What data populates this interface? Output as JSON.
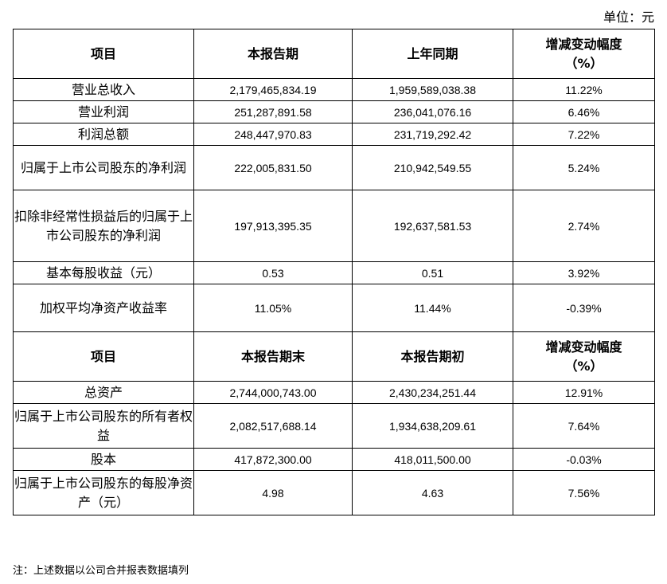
{
  "unit_label": "单位：元",
  "section1": {
    "headers": [
      "项目",
      "本报告期",
      "上年同期",
      "增减变动幅度",
      "（%）"
    ],
    "rows": [
      {
        "item": "营业总收入",
        "current": "2,179,465,834.19",
        "previous": "1,959,589,038.38",
        "change": "11.22%"
      },
      {
        "item": "营业利润",
        "current": "251,287,891.58",
        "previous": "236,041,076.16",
        "change": "6.46%"
      },
      {
        "item": "利润总额",
        "current": "248,447,970.83",
        "previous": "231,719,292.42",
        "change": "7.22%"
      },
      {
        "item": "归属于上市公司股东的净利润",
        "current": "222,005,831.50",
        "previous": "210,942,549.55",
        "change": "5.24%"
      },
      {
        "item": "扣除非经常性损益后的归属于上市公司股东的净利润",
        "current": "197,913,395.35",
        "previous": "192,637,581.53",
        "change": "2.74%"
      },
      {
        "item": "基本每股收益（元）",
        "current": "0.53",
        "previous": "0.51",
        "change": "3.92%"
      },
      {
        "item": "加权平均净资产收益率",
        "current": "11.05%",
        "previous": "11.44%",
        "change": "-0.39%"
      }
    ]
  },
  "section2": {
    "headers": [
      "项目",
      "本报告期末",
      "本报告期初",
      "增减变动幅度",
      "（%）"
    ],
    "rows": [
      {
        "item": "总资产",
        "current": "2,744,000,743.00",
        "previous": "2,430,234,251.44",
        "change": "12.91%"
      },
      {
        "item": "归属于上市公司股东的所有者权益",
        "current": "2,082,517,688.14",
        "previous": "1,934,638,209.61",
        "change": "7.64%"
      },
      {
        "item": "股本",
        "current": "417,872,300.00",
        "previous": "418,011,500.00",
        "change": "-0.03%"
      },
      {
        "item": "归属于上市公司股东的每股净资产（元）",
        "current": "4.98",
        "previous": "4.63",
        "change": "7.56%"
      }
    ]
  },
  "note": "注：上述数据以公司合并报表数据填列"
}
